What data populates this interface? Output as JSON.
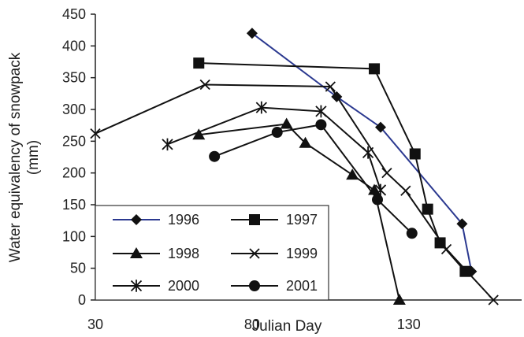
{
  "chart_data": {
    "type": "line",
    "title": "",
    "xlabel": "Julian Day",
    "ylabel_lines": [
      "Water equivalency of snowpack",
      "(mm)"
    ],
    "xlim": [
      30,
      166
    ],
    "ylim": [
      0,
      450
    ],
    "xticks": [
      {
        "value": 30,
        "label": "30"
      },
      {
        "value": 80,
        "label": "80"
      },
      {
        "value": 130,
        "label": "130"
      }
    ],
    "yticks": [
      {
        "value": 0,
        "label": "0"
      },
      {
        "value": 50,
        "label": "50"
      },
      {
        "value": 100,
        "label": "100"
      },
      {
        "value": 150,
        "label": "150"
      },
      {
        "value": 200,
        "label": "200"
      },
      {
        "value": 250,
        "label": "250"
      },
      {
        "value": 300,
        "label": "300"
      },
      {
        "value": 350,
        "label": "350"
      },
      {
        "value": 400,
        "label": "400"
      },
      {
        "value": 450,
        "label": "450"
      }
    ],
    "grid": false,
    "legend_position": "bottom-left",
    "series": [
      {
        "name": "1996",
        "marker": "diamond",
        "line_color": "#2b3990",
        "marker_color": "#111111",
        "points": [
          [
            80,
            420
          ],
          [
            107,
            320
          ],
          [
            121,
            272
          ],
          [
            147,
            120
          ],
          [
            150,
            45
          ]
        ]
      },
      {
        "name": "1997",
        "marker": "square",
        "line_color": "#111111",
        "marker_color": "#111111",
        "points": [
          [
            63,
            373
          ],
          [
            119,
            364
          ],
          [
            132,
            230
          ],
          [
            136,
            143
          ],
          [
            140,
            90
          ],
          [
            148,
            45
          ]
        ]
      },
      {
        "name": "1998",
        "marker": "triangle",
        "line_color": "#111111",
        "marker_color": "#111111",
        "points": [
          [
            63,
            260
          ],
          [
            91,
            277
          ],
          [
            97,
            247
          ],
          [
            112,
            197
          ],
          [
            119,
            173
          ],
          [
            127,
            0
          ]
        ]
      },
      {
        "name": "1999",
        "marker": "x",
        "line_color": "#111111",
        "marker_color": "#111111",
        "points": [
          [
            30,
            262
          ],
          [
            65,
            339
          ],
          [
            105,
            336
          ],
          [
            123,
            200
          ],
          [
            129,
            172
          ],
          [
            142,
            80
          ],
          [
            157,
            0
          ]
        ]
      },
      {
        "name": "2000",
        "marker": "star",
        "line_color": "#111111",
        "marker_color": "#111111",
        "points": [
          [
            53,
            245
          ],
          [
            83,
            303
          ],
          [
            102,
            297
          ],
          [
            117,
            232
          ],
          [
            121,
            173
          ]
        ]
      },
      {
        "name": "2001",
        "marker": "circle",
        "line_color": "#111111",
        "marker_color": "#111111",
        "points": [
          [
            68,
            226
          ],
          [
            88,
            264
          ],
          [
            102,
            276
          ],
          [
            120,
            158
          ],
          [
            131,
            105
          ]
        ]
      }
    ]
  }
}
